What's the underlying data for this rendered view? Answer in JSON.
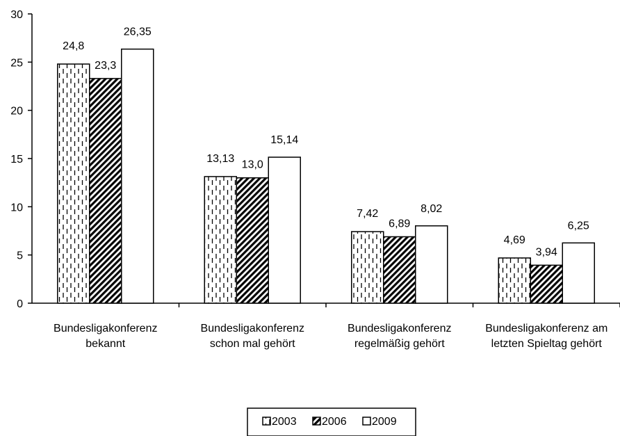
{
  "chart_data": {
    "type": "bar",
    "categories": [
      [
        "Bundesligakonferenz",
        "bekannt"
      ],
      [
        "Bundesligakonferenz",
        "schon mal gehört"
      ],
      [
        "Bundesligakonferenz",
        "regelmäßig gehört"
      ],
      [
        "Bundesligakonferenz am",
        "letzten Spieltag gehört"
      ]
    ],
    "series": [
      {
        "name": "2003",
        "values": [
          24.8,
          13.13,
          7.42,
          4.69
        ],
        "labels": [
          "24,8",
          "13,13",
          "7,42",
          "4,69"
        ],
        "pattern": "dashed-vertical"
      },
      {
        "name": "2006",
        "values": [
          23.3,
          13.0,
          6.89,
          3.94
        ],
        "labels": [
          "23,3",
          "13,0",
          "6,89",
          "3,94"
        ],
        "pattern": "diagonal-hatch"
      },
      {
        "name": "2009",
        "values": [
          26.35,
          15.14,
          8.02,
          6.25
        ],
        "labels": [
          "26,35",
          "15,14",
          "8,02",
          "6,25"
        ],
        "pattern": "white"
      }
    ],
    "yticks": [
      "0",
      "5",
      "10",
      "15",
      "20",
      "25",
      "30"
    ],
    "ylim": [
      0,
      30
    ],
    "grid": false,
    "legend_position": "bottom-center",
    "colors": {
      "stroke": "#000000",
      "fill": "#ffffff"
    }
  }
}
